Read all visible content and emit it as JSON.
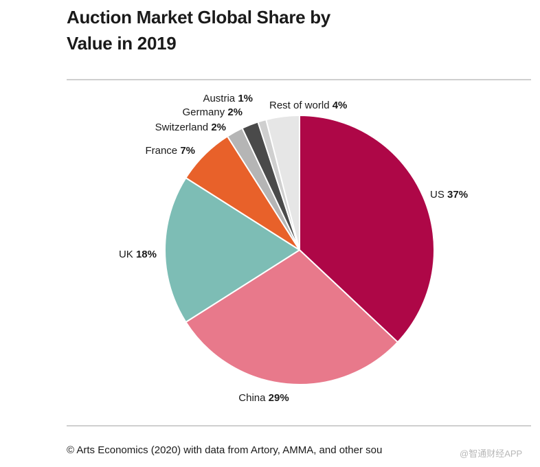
{
  "chart_data": {
    "type": "pie",
    "title_lines": [
      "Auction Market Global Share by",
      "Value in 2019"
    ],
    "categories": [
      "US",
      "China",
      "UK",
      "France",
      "Switzerland",
      "Germany",
      "Austria",
      "Rest of world"
    ],
    "values": [
      37,
      29,
      18,
      7,
      2,
      2,
      1,
      4
    ],
    "value_labels": [
      "37%",
      "29%",
      "18%",
      "7%",
      "2%",
      "2%",
      "1%",
      "4%"
    ],
    "colors": [
      "#ae0747",
      "#e8798b",
      "#7dbdb5",
      "#e8612a",
      "#b5b5b5",
      "#4a4a4a",
      "#cfcfcf",
      "#e6e6e6"
    ],
    "start_angle_deg": 0,
    "direction": "clockwise",
    "legend": "none"
  },
  "source": "© Arts Economics (2020) with data from Artory, AMMA, and other sou",
  "watermark": "@智通财经APP"
}
